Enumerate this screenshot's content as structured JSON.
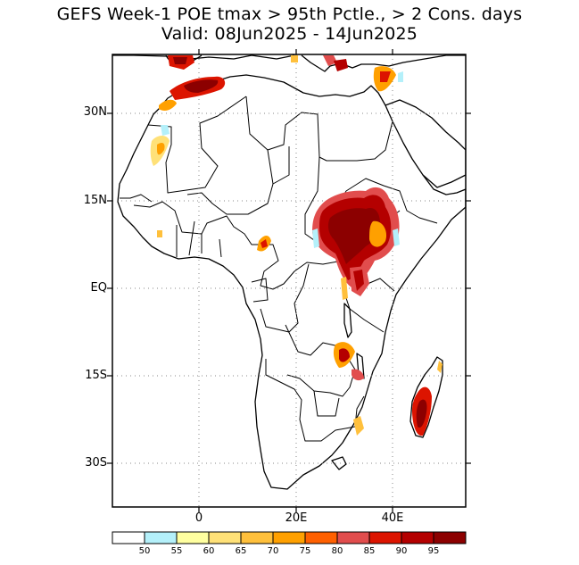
{
  "title": "GEFS Week-1 POE tmax > 95th Pctle., > 2 Cons. days",
  "subtitle": "Valid: 08Jun2025 - 14Jun2025",
  "lat_labels": [
    "30N",
    "15N",
    "EQ",
    "15S",
    "30S"
  ],
  "lon_labels": [
    "0",
    "20E",
    "40E"
  ],
  "colorbar": {
    "labels": [
      "50",
      "55",
      "60",
      "65",
      "70",
      "75",
      "80",
      "85",
      "90",
      "95"
    ],
    "colors": [
      "#ffffff",
      "#b4f0fa",
      "#ffffa0",
      "#ffe178",
      "#ffc03c",
      "#ffa000",
      "#ff6000",
      "#e14d4d",
      "#dc1400",
      "#b40000",
      "#8c0000"
    ]
  },
  "map": {
    "lon_range": [
      -18,
      55
    ],
    "lat_range": [
      -38,
      40
    ],
    "gridlines": "dotted"
  }
}
